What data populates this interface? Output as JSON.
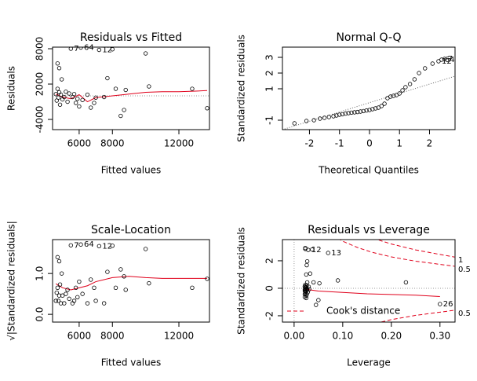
{
  "chart_data": [
    {
      "type": "scatter",
      "title": "Residuals vs Fitted",
      "x_label": "Fitted values",
      "y_label": "Residuals",
      "xlim": [
        4400,
        13840
      ],
      "ylim": [
        -5730,
        8270
      ],
      "xticks": [
        6000,
        8000,
        12000
      ],
      "yticks": [
        -4000,
        2000,
        8000
      ],
      "x": [
        4600,
        4650,
        4700,
        4700,
        4750,
        4800,
        4800,
        4850,
        4900,
        4950,
        5000,
        5100,
        5200,
        5300,
        5400,
        5500,
        5600,
        5700,
        5800,
        5900,
        6000,
        6100,
        6200,
        6500,
        6700,
        6900,
        7000,
        7200,
        7500,
        7700,
        8000,
        8200,
        8500,
        8700,
        8800,
        10000,
        10200,
        12800,
        13700
      ],
      "values": [
        300,
        -800,
        1200,
        5500,
        -300,
        4700,
        600,
        -1500,
        200,
        2800,
        -600,
        -200,
        700,
        -1000,
        400,
        8000,
        -200,
        300,
        -1200,
        -500,
        -1800,
        8200,
        -700,
        200,
        -2000,
        -1200,
        -300,
        7800,
        -200,
        3000,
        7900,
        1200,
        -3400,
        -2400,
        1000,
        7200,
        1600,
        1200,
        -2100
      ],
      "point_labels": [
        null,
        null,
        null,
        null,
        null,
        null,
        null,
        null,
        null,
        null,
        null,
        null,
        null,
        null,
        null,
        "7",
        null,
        null,
        null,
        null,
        null,
        "64",
        null,
        null,
        null,
        null,
        null,
        "12",
        null,
        null,
        null,
        null,
        null,
        null,
        null,
        null,
        null,
        null,
        null
      ],
      "smooth": {
        "color": "#e0001b",
        "x": [
          4600,
          5000,
          5500,
          6000,
          6500,
          7000,
          8000,
          9000,
          10000,
          11000,
          12000,
          13000,
          13700
        ],
        "values": [
          300,
          -200,
          -500,
          200,
          -1000,
          -300,
          0,
          300,
          600,
          700,
          700,
          800,
          900
        ]
      },
      "ref_hline": 0
    },
    {
      "type": "qq",
      "title": "Normal Q-Q",
      "x_label": "Theoretical Quantiles",
      "y_label": "Standardized residuals",
      "xlim": [
        -2.9,
        2.85
      ],
      "ylim": [
        -1.6,
        3.65
      ],
      "xticks": [
        -2,
        -1,
        0,
        1,
        2
      ],
      "yticks": [
        -1,
        1,
        2,
        3
      ],
      "x": [
        -2.5,
        -2.1,
        -1.85,
        -1.65,
        -1.5,
        -1.35,
        -1.2,
        -1.1,
        -1.0,
        -0.9,
        -0.8,
        -0.7,
        -0.6,
        -0.5,
        -0.4,
        -0.3,
        -0.2,
        -0.1,
        0,
        0.1,
        0.2,
        0.3,
        0.4,
        0.5,
        0.6,
        0.7,
        0.8,
        0.9,
        1.0,
        1.1,
        1.2,
        1.35,
        1.5,
        1.65,
        1.85,
        2.1,
        2.3,
        2.4,
        2.5
      ],
      "values": [
        -1.2,
        -1.05,
        -1.0,
        -0.9,
        -0.85,
        -0.8,
        -0.75,
        -0.7,
        -0.65,
        -0.62,
        -0.58,
        -0.55,
        -0.52,
        -0.5,
        -0.48,
        -0.45,
        -0.42,
        -0.38,
        -0.35,
        -0.3,
        -0.25,
        -0.2,
        -0.1,
        0.05,
        0.4,
        0.5,
        0.55,
        0.6,
        0.7,
        0.9,
        1.1,
        1.3,
        1.6,
        2.0,
        2.3,
        2.6,
        2.75,
        2.85,
        2.9
      ],
      "point_labels": [
        null,
        null,
        null,
        null,
        null,
        null,
        null,
        null,
        null,
        null,
        null,
        null,
        null,
        null,
        null,
        null,
        null,
        null,
        null,
        null,
        null,
        null,
        null,
        null,
        null,
        null,
        null,
        null,
        null,
        null,
        null,
        null,
        null,
        null,
        null,
        null,
        "12",
        "64",
        "7"
      ],
      "ref_line": {
        "x": [
          -2.9,
          2.85
        ],
        "values": [
          -1.6,
          1.8
        ]
      }
    },
    {
      "type": "scatter",
      "title": "Scale-Location",
      "x_label": "Fitted values",
      "y_label": "√|Standardized residuals|",
      "xlim": [
        4400,
        13840
      ],
      "ylim": [
        -0.19,
        1.83
      ],
      "xticks": [
        6000,
        8000,
        12000
      ],
      "yticks": [
        {
          "value": 0,
          "label": "0.0"
        },
        {
          "value": 1,
          "label": "1.0"
        }
      ],
      "x": [
        4600,
        4650,
        4700,
        4700,
        4750,
        4800,
        4800,
        4850,
        4900,
        4950,
        5000,
        5100,
        5200,
        5300,
        5400,
        5500,
        5600,
        5700,
        5800,
        5900,
        6000,
        6100,
        6200,
        6500,
        6700,
        6900,
        7000,
        7200,
        7500,
        7700,
        8000,
        8200,
        8500,
        8700,
        8800,
        10000,
        10200,
        12800,
        13700
      ],
      "values": [
        0.33,
        0.53,
        0.65,
        1.4,
        0.33,
        1.3,
        0.46,
        0.73,
        0.27,
        1.0,
        0.46,
        0.27,
        0.5,
        0.6,
        0.38,
        1.69,
        0.27,
        0.33,
        0.65,
        0.42,
        0.8,
        1.71,
        0.5,
        0.27,
        0.85,
        0.65,
        0.33,
        1.67,
        0.27,
        1.04,
        1.68,
        0.65,
        1.1,
        0.93,
        0.6,
        1.6,
        0.76,
        0.65,
        0.87
      ],
      "point_labels": [
        null,
        null,
        null,
        null,
        null,
        null,
        null,
        null,
        null,
        null,
        null,
        null,
        null,
        null,
        null,
        "7",
        null,
        null,
        null,
        null,
        null,
        "64",
        null,
        null,
        null,
        null,
        null,
        "12",
        null,
        null,
        null,
        null,
        null,
        null,
        null,
        null,
        null,
        null,
        null
      ],
      "smooth": {
        "color": "#e0001b",
        "x": [
          4600,
          5000,
          5500,
          6000,
          6500,
          7000,
          8000,
          9000,
          10000,
          11000,
          12000,
          13000,
          13700
        ],
        "values": [
          0.75,
          0.65,
          0.6,
          0.65,
          0.7,
          0.8,
          0.9,
          0.93,
          0.9,
          0.88,
          0.88,
          0.88,
          0.88
        ]
      }
    },
    {
      "type": "scatter",
      "title": "Residuals vs Leverage",
      "x_label": "Leverage",
      "y_label": "Standardized residuals",
      "xlim": [
        -0.024,
        0.331
      ],
      "ylim": [
        -2.46,
        3.54
      ],
      "xticks": [
        {
          "value": 0,
          "label": "0.00"
        },
        {
          "value": 0.1,
          "label": "0.10"
        },
        {
          "value": 0.2,
          "label": "0.20"
        },
        {
          "value": 0.3,
          "label": "0.30"
        }
      ],
      "yticks": [
        -2,
        0,
        2
      ],
      "x": [
        0.03,
        0.028,
        0.027,
        0.027,
        0.026,
        0.026,
        0.026,
        0.025,
        0.025,
        0.025,
        0.024,
        0.024,
        0.023,
        0.023,
        0.022,
        0.023,
        0.022,
        0.022,
        0.022,
        0.022,
        0.022,
        0.023,
        0.023,
        0.024,
        0.025,
        0.026,
        0.027,
        0.029,
        0.031,
        0.033,
        0.037,
        0.04,
        0.045,
        0.05,
        0.052,
        0.07,
        0.09,
        0.23,
        0.3
      ],
      "values": [
        0.11,
        -0.29,
        0.43,
        1.96,
        -0.11,
        1.68,
        0.21,
        -0.54,
        0.07,
        1.0,
        -0.21,
        -0.07,
        0.25,
        -0.36,
        0.14,
        2.86,
        -0.07,
        0.11,
        -0.43,
        -0.18,
        -0.64,
        2.93,
        -0.25,
        0.07,
        -0.71,
        -0.43,
        -0.11,
        2.79,
        -0.07,
        1.07,
        2.82,
        0.43,
        -1.21,
        -0.86,
        0.36,
        2.57,
        0.57,
        0.43,
        -1.15
      ],
      "point_labels": [
        null,
        null,
        null,
        null,
        null,
        null,
        null,
        null,
        null,
        null,
        null,
        null,
        null,
        null,
        null,
        null,
        null,
        null,
        null,
        null,
        null,
        null,
        null,
        null,
        null,
        null,
        null,
        "12",
        null,
        null,
        null,
        null,
        null,
        null,
        null,
        "13",
        null,
        null,
        "26"
      ],
      "smooth": {
        "color": "#e0001b",
        "x": [
          0.02,
          0.03,
          0.05,
          0.1,
          0.15,
          0.2,
          0.25,
          0.3
        ],
        "values": [
          0,
          -0.1,
          -0.2,
          -0.3,
          -0.4,
          -0.45,
          -0.5,
          -0.6
        ]
      },
      "ref_hline": 0,
      "ref_vline": 0,
      "cook_color": "#e0001b",
      "cook_lines": [
        {
          "label": "1",
          "x": [
            0.15,
            0.18,
            0.2,
            0.25,
            0.3,
            0.33
          ],
          "values": [
            3.84,
            3.44,
            3.22,
            2.79,
            2.46,
            2.27
          ]
        },
        {
          "label": "0.5",
          "x": [
            0.06,
            0.08,
            0.1,
            0.13,
            0.16,
            0.2,
            0.25,
            0.3,
            0.33
          ],
          "values": [
            4.51,
            3.87,
            3.42,
            2.97,
            2.62,
            2.28,
            1.97,
            1.74,
            1.6
          ]
        },
        {
          "label": "0.5",
          "x": [
            0.13,
            0.16,
            0.2,
            0.25,
            0.3,
            0.33
          ],
          "values": [
            -2.97,
            -2.62,
            -2.28,
            -1.97,
            -1.74,
            -1.6
          ]
        }
      ],
      "legend": "Cook's distance"
    }
  ]
}
